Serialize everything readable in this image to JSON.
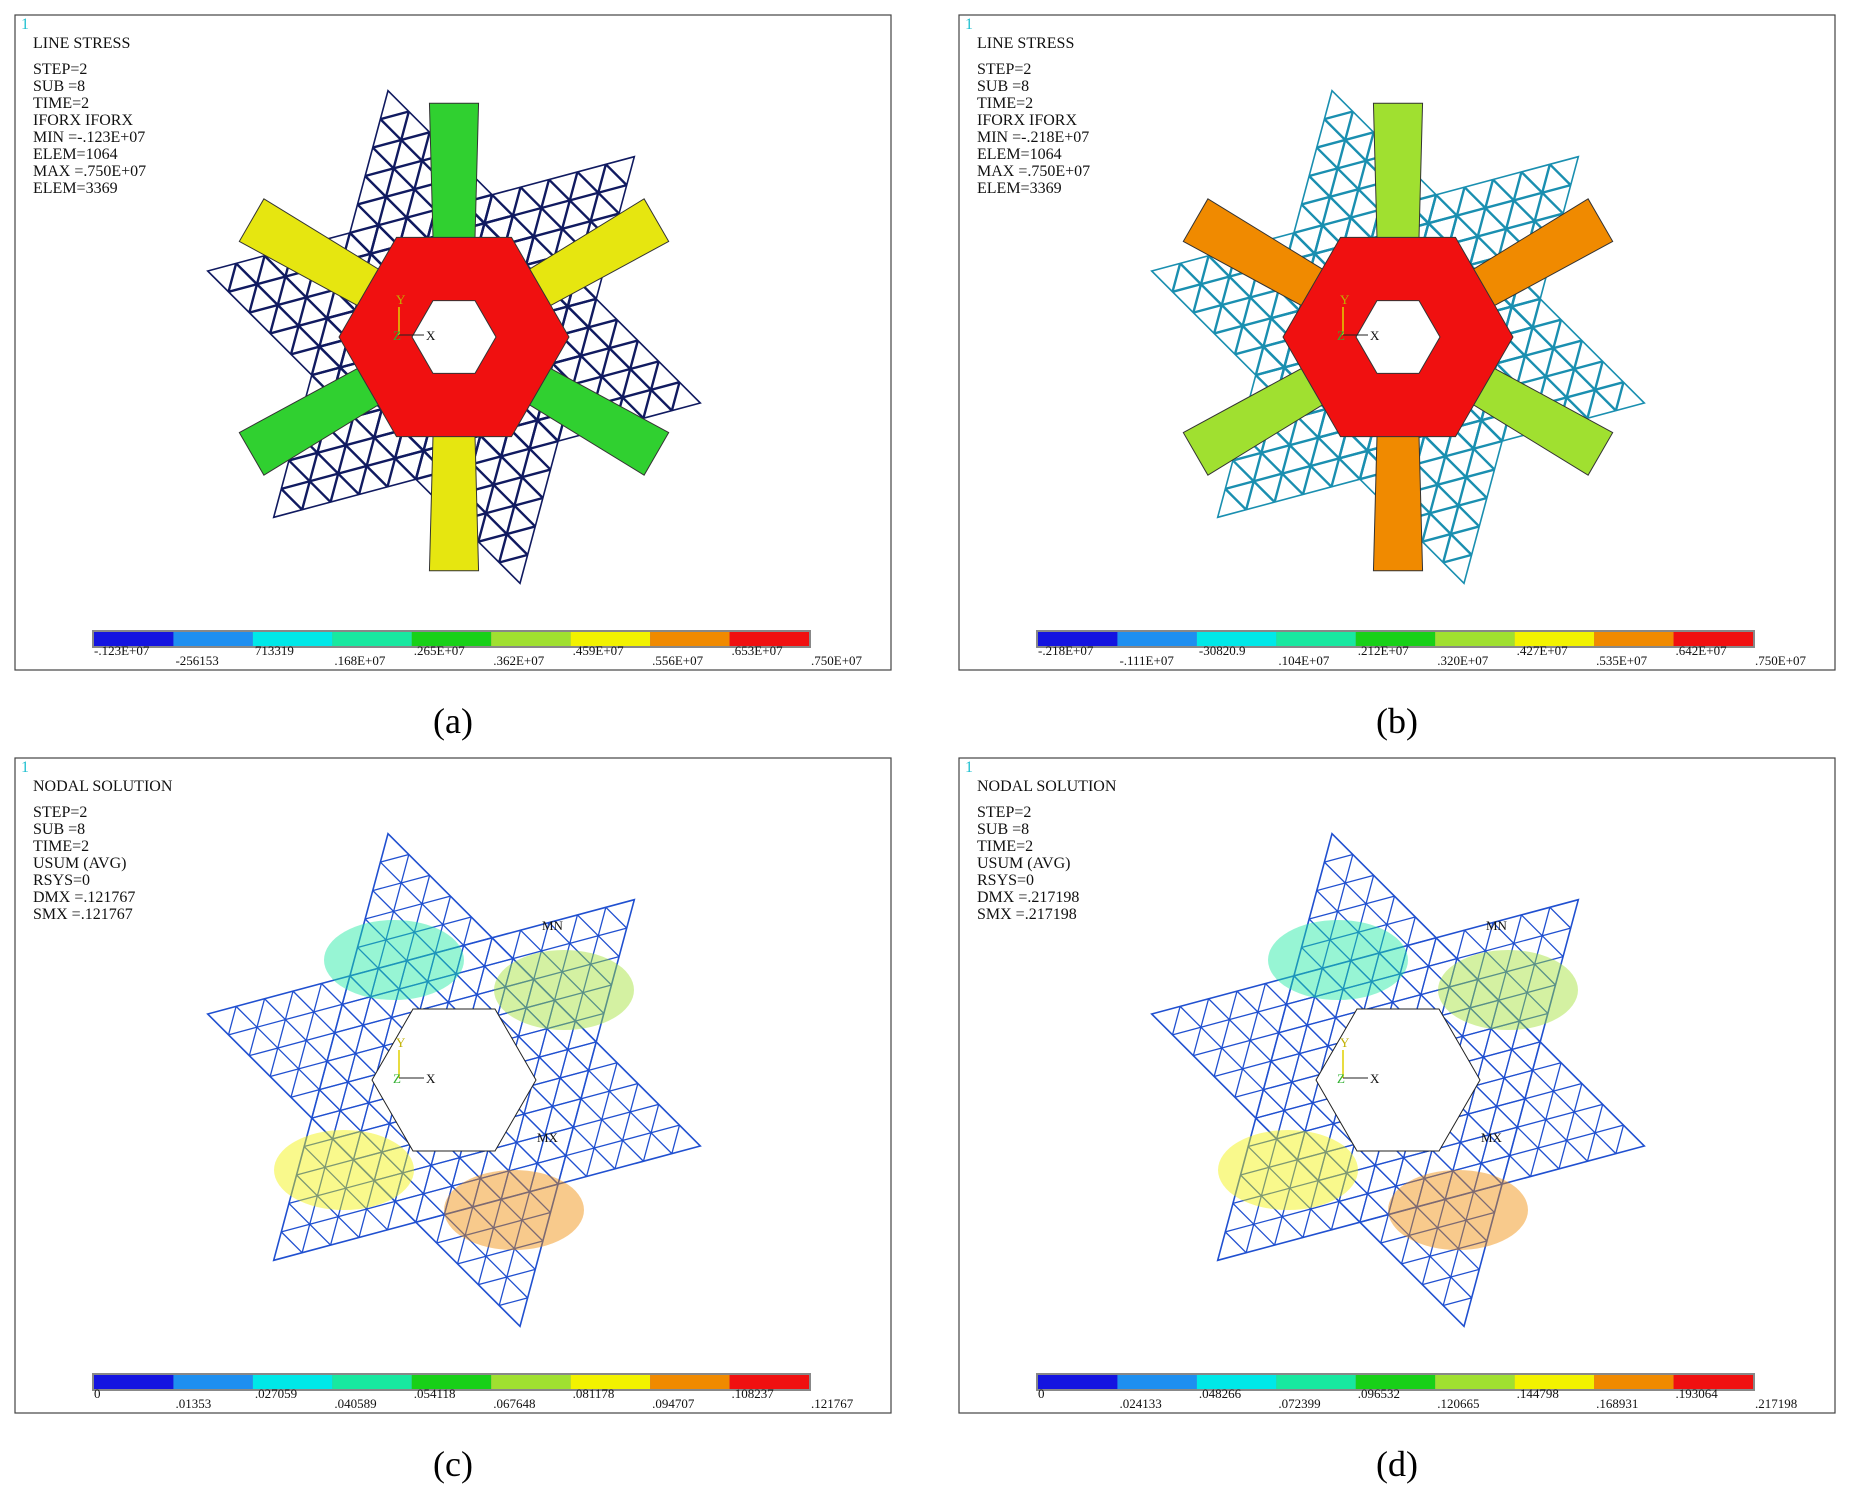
{
  "colorbar_colors": [
    "#1414e0",
    "#1e8ff0",
    "#00e8e8",
    "#18e8a0",
    "#18d018",
    "#a0e030",
    "#f2f200",
    "#f08a00",
    "#f01010"
  ],
  "triad": {
    "y": "Y",
    "z": "Z",
    "x": "X"
  },
  "panels": [
    {
      "caption": "(a)",
      "corner": "1",
      "style": "stress",
      "mesh_color": "#101a60",
      "plate_colors": [
        "#30d030",
        "#e6e610"
      ],
      "lines": [
        "LINE STRESS",
        "STEP=2",
        "SUB =8",
        "TIME=2",
        "IFORX    IFORX",
        "MIN =-.123E+07",
        "ELEM=1064",
        "MAX =.750E+07",
        "ELEM=3369"
      ],
      "legend": [
        "-.123E+07",
        "-256153",
        "713319",
        ".168E+07",
        ".265E+07",
        ".362E+07",
        ".459E+07",
        ".556E+07",
        ".653E+07",
        ".750E+07"
      ]
    },
    {
      "caption": "(b)",
      "corner": "1",
      "style": "stress",
      "mesh_color": "#1a8fb0",
      "plate_colors": [
        "#a0e030",
        "#f08a00"
      ],
      "lines": [
        "LINE STRESS",
        "STEP=2",
        "SUB =8",
        "TIME=2",
        "IFORX    IFORX",
        "MIN =-.218E+07",
        "ELEM=1064",
        "MAX =.750E+07",
        "ELEM=3369"
      ],
      "legend": [
        "-.218E+07",
        "-.111E+07",
        "-30820.9",
        ".104E+07",
        ".212E+07",
        ".320E+07",
        ".427E+07",
        ".535E+07",
        ".642E+07",
        ".750E+07"
      ]
    },
    {
      "caption": "(c)",
      "corner": "1",
      "style": "nodal",
      "mesh_color": "#2050d0",
      "markers": [
        "MN",
        "MX"
      ],
      "lines": [
        "NODAL SOLUTION",
        "STEP=2",
        "SUB =8",
        "TIME=2",
        "USUM      (AVG)",
        "RSYS=0",
        "DMX =.121767",
        "SMX =.121767"
      ],
      "legend": [
        "0",
        ".01353",
        ".027059",
        ".040589",
        ".054118",
        ".067648",
        ".081178",
        ".094707",
        ".108237",
        ".121767"
      ]
    },
    {
      "caption": "(d)",
      "corner": "1",
      "style": "nodal",
      "mesh_color": "#2050d0",
      "markers": [
        "MN",
        "MX"
      ],
      "lines": [
        "NODAL SOLUTION",
        "STEP=2",
        "SUB =8",
        "TIME=2",
        "USUM      (AVG)",
        "RSYS=0",
        "DMX =.217198",
        "SMX =.217198"
      ],
      "legend": [
        "0",
        ".024133",
        ".048266",
        ".072399",
        ".096532",
        ".120665",
        ".144798",
        ".168931",
        ".193064",
        ".217198"
      ]
    }
  ]
}
